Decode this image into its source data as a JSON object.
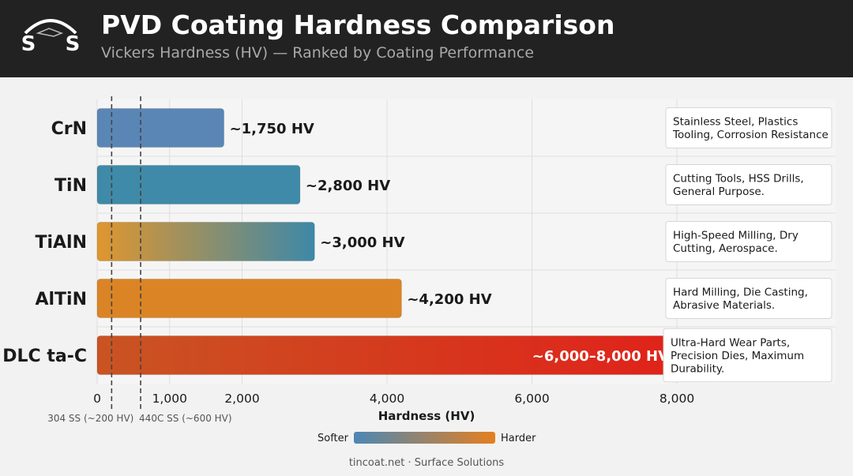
{
  "header": {
    "logo_text": "S S",
    "title": "PVD Coating Hardness Comparison",
    "subtitle": "Vickers Hardness (HV) — Ranked by Coating Performance"
  },
  "footer": {
    "text": "tincoat.net · Surface Solutions"
  },
  "chart_data": {
    "type": "bar",
    "orientation": "horizontal",
    "xlabel": "Hardness (HV)",
    "xlim": [
      0,
      8000
    ],
    "xticks": [
      {
        "value": 0,
        "label": "0"
      },
      {
        "value": 1000,
        "label": "1,000"
      },
      {
        "value": 2000,
        "label": "2,000"
      },
      {
        "value": 4000,
        "label": "4,000"
      },
      {
        "value": 6000,
        "label": "6,000"
      },
      {
        "value": 8000,
        "label": "8,000"
      }
    ],
    "gridlines": [
      0,
      1000,
      2000,
      4000,
      6000,
      8000
    ],
    "bars": [
      {
        "category": "CrN",
        "value": 1750,
        "label": "~1,750 HV",
        "application": "Stainless Steel, Plastics\nTooling, Corrosion Resistance",
        "color": "#5a86b6"
      },
      {
        "category": "TiN",
        "value": 2800,
        "label": "~2,800 HV",
        "application": "Cutting Tools, HSS Drills,\nGeneral Purpose.",
        "color": "#3f8aa8"
      },
      {
        "category": "TiAlN",
        "value": 3000,
        "label": "~3,000 HV",
        "application": "High-Speed Milling, Dry\nCutting, Aerospace.",
        "color_start": "#e0962e",
        "color_end": "#3d88a8"
      },
      {
        "category": "AlTiN",
        "value": 4200,
        "label": "~4,200 HV",
        "application": "Hard Milling, Die Casting,\nAbrasive Materials.",
        "color": "#db8425"
      },
      {
        "category": "DLC ta-C",
        "value": 8000,
        "range": [
          6000,
          8000
        ],
        "label": "~6,000–8,000 HV",
        "application": "Ultra-Hard Wear Parts,\nPrecision Dies, Maximum\nDurability.",
        "color_start": "#c95422",
        "color_end": "#e0221a"
      }
    ],
    "reference_lines": [
      {
        "value": 200,
        "label": "304 SS (~200 HV)"
      },
      {
        "value": 600,
        "label": "440C SS (~600 HV)"
      }
    ],
    "scale_legend": {
      "low_label": "Softer",
      "high_label": "Harder",
      "color_low": "#4c87b5",
      "color_high": "#e57f1f"
    }
  }
}
